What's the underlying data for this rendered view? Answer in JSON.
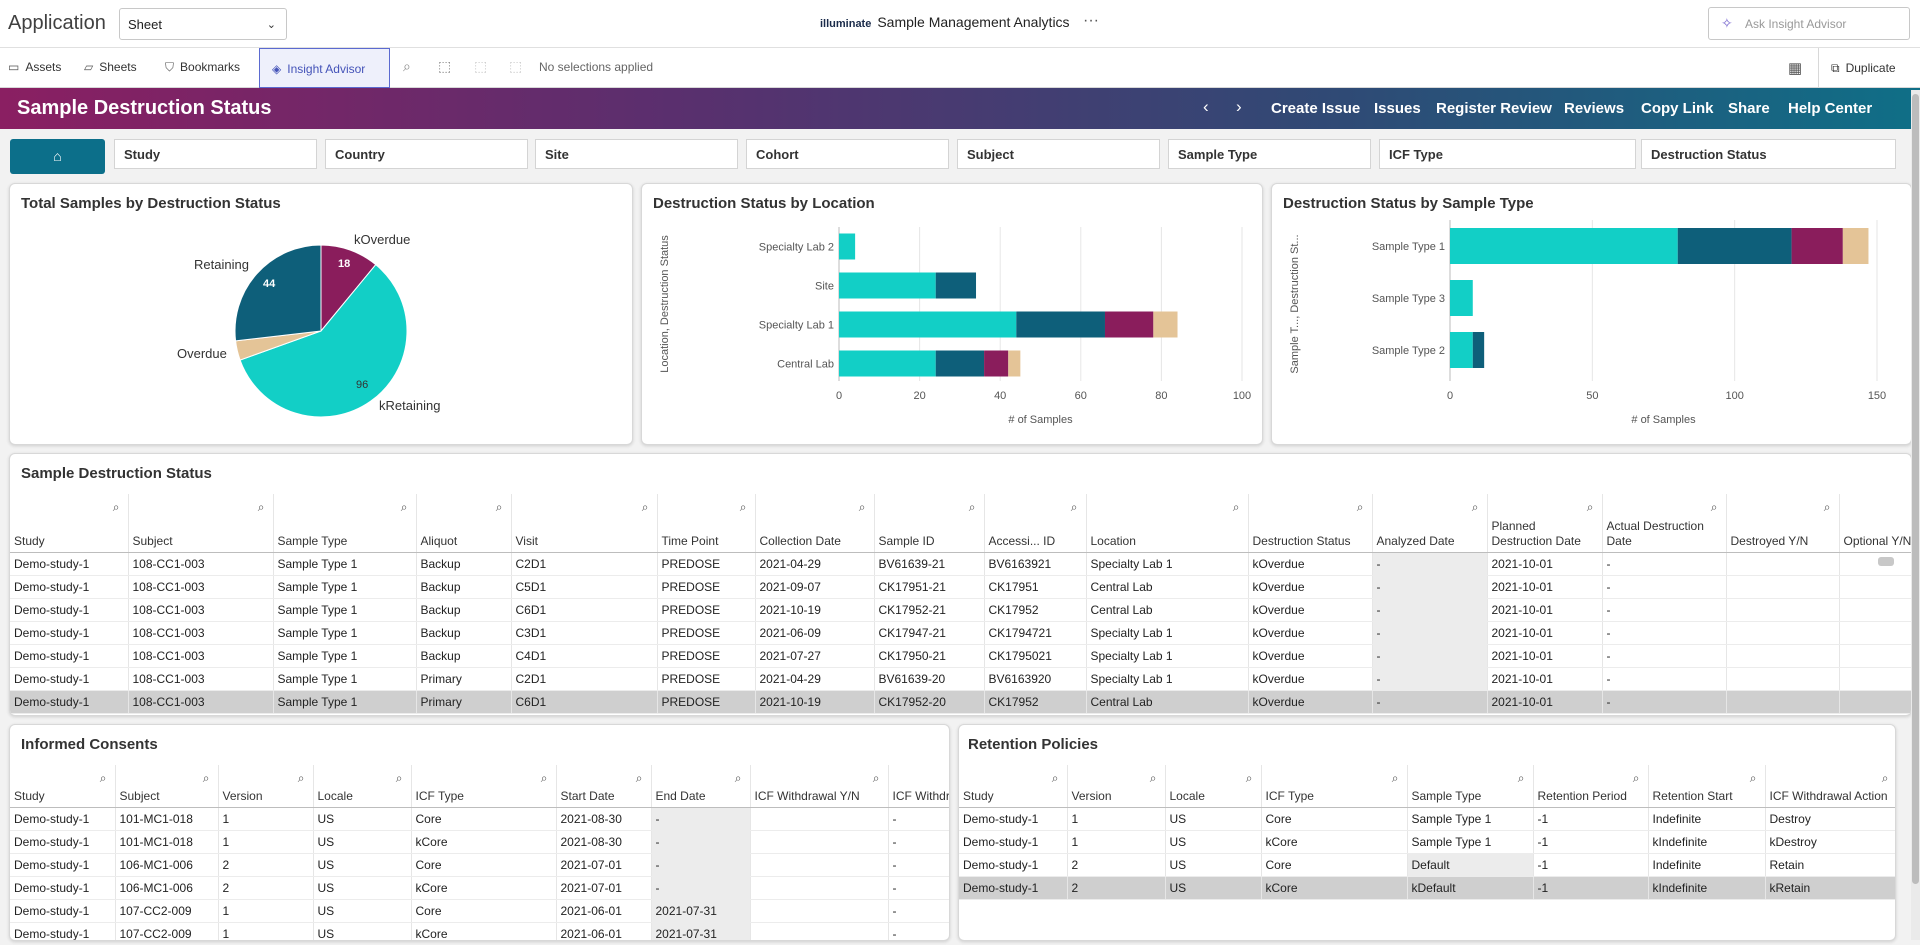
{
  "topbar": {
    "app_title": "Application",
    "sheet_value": "Sheet",
    "brand_logo": "illuminate",
    "brand_title": "Sample Management Analytics",
    "more": "···",
    "ask_placeholder": "Ask Insight Advisor"
  },
  "toolbar": {
    "assets": "Assets",
    "sheets": "Sheets",
    "bookmarks": "Bookmarks",
    "insight": "Insight Advisor",
    "selections": "No selections applied",
    "duplicate": "Duplicate"
  },
  "banner": {
    "title": "Sample Destruction Status",
    "nav": [
      "Create Issue",
      "Issues",
      "Register Review",
      "Reviews",
      "Copy Link",
      "Share",
      "Help Center"
    ]
  },
  "filters": [
    "Study",
    "Country",
    "Site",
    "Cohort",
    "Subject",
    "Sample Type",
    "ICF Type",
    "Destruction Status"
  ],
  "colors": {
    "kRetaining": "#12cfc6",
    "Retaining": "#0e5f7a",
    "kOverdue": "#8a1d5c",
    "Overdue": "#e4c497"
  },
  "pie": {
    "title": "Total Samples by Destruction Status",
    "labels": {
      "kOverdue": "kOverdue",
      "Retaining": "Retaining",
      "Overdue": "Overdue",
      "kRetaining": "kRetaining"
    },
    "value_labels": {
      "kOverdue": "18",
      "Retaining": "44",
      "kRetaining": "96"
    }
  },
  "chart_data": [
    {
      "type": "pie",
      "title": "Total Samples by Destruction Status",
      "categories": [
        "kOverdue",
        "kRetaining",
        "Overdue",
        "Retaining"
      ],
      "values": [
        18,
        96,
        6,
        44
      ],
      "colors": [
        "#8a1d5c",
        "#12cfc6",
        "#e4c497",
        "#0e5f7a"
      ]
    },
    {
      "type": "bar",
      "orientation": "horizontal",
      "stacked": true,
      "title": "Destruction Status by Location",
      "ylabel": "Location, Destruction Status",
      "xlabel": "# of Samples",
      "xlim": [
        0,
        100
      ],
      "xticks": [
        0,
        20,
        40,
        60,
        80,
        100
      ],
      "categories": [
        "Specialty Lab 2",
        "Site",
        "Specialty Lab 1",
        "Central Lab"
      ],
      "series": [
        {
          "color": "#12cfc6",
          "values": [
            4,
            24,
            44,
            24
          ]
        },
        {
          "color": "#0e5f7a",
          "values": [
            0,
            10,
            22,
            12
          ]
        },
        {
          "color": "#8a1d5c",
          "values": [
            0,
            0,
            12,
            6
          ]
        },
        {
          "color": "#e4c497",
          "values": [
            0,
            0,
            6,
            3
          ]
        }
      ]
    },
    {
      "type": "bar",
      "orientation": "horizontal",
      "stacked": true,
      "title": "Destruction Status by Sample Type",
      "ylabel": "Sample T..., Destruction St...",
      "xlabel": "# of Samples",
      "xlim": [
        0,
        150
      ],
      "xticks": [
        0,
        50,
        100,
        150
      ],
      "categories": [
        "Sample Type 1",
        "Sample Type 3",
        "Sample Type 2"
      ],
      "series": [
        {
          "color": "#12cfc6",
          "values": [
            80,
            8,
            8
          ]
        },
        {
          "color": "#0e5f7a",
          "values": [
            40,
            0,
            4
          ]
        },
        {
          "color": "#8a1d5c",
          "values": [
            18,
            0,
            0
          ]
        },
        {
          "color": "#e4c497",
          "values": [
            9,
            0,
            0
          ]
        }
      ]
    }
  ],
  "sds": {
    "title": "Sample Destruction Status",
    "headers": [
      "Study",
      "Subject",
      "Sample Type",
      "Aliquot",
      "Visit",
      "Time Point",
      "Collection Date",
      "Sample ID",
      "Accessi... ID",
      "Location",
      "Destruction Status",
      "Analyzed Date",
      "Planned Destruction Date",
      "Actual Destruction Date",
      "Destroyed Y/N",
      "Optional Y/N"
    ],
    "rows": [
      [
        "Demo-study-1",
        "108-CC1-003",
        "Sample Type 1",
        "Backup",
        "C2D1",
        "PREDOSE",
        "2021-04-29",
        "BV61639-21",
        "BV6163921",
        "Specialty Lab 1",
        "kOverdue",
        "-",
        "2021-10-01",
        "-",
        "",
        ""
      ],
      [
        "Demo-study-1",
        "108-CC1-003",
        "Sample Type 1",
        "Backup",
        "C5D1",
        "PREDOSE",
        "2021-09-07",
        "CK17951-21",
        "CK17951",
        "Central Lab",
        "kOverdue",
        "-",
        "2021-10-01",
        "-",
        "",
        ""
      ],
      [
        "Demo-study-1",
        "108-CC1-003",
        "Sample Type 1",
        "Backup",
        "C6D1",
        "PREDOSE",
        "2021-10-19",
        "CK17952-21",
        "CK17952",
        "Central Lab",
        "kOverdue",
        "-",
        "2021-10-01",
        "-",
        "",
        ""
      ],
      [
        "Demo-study-1",
        "108-CC1-003",
        "Sample Type 1",
        "Backup",
        "C3D1",
        "PREDOSE",
        "2021-06-09",
        "CK17947-21",
        "CK1794721",
        "Specialty Lab 1",
        "kOverdue",
        "-",
        "2021-10-01",
        "-",
        "",
        ""
      ],
      [
        "Demo-study-1",
        "108-CC1-003",
        "Sample Type 1",
        "Backup",
        "C4D1",
        "PREDOSE",
        "2021-07-27",
        "CK17950-21",
        "CK1795021",
        "Specialty Lab 1",
        "kOverdue",
        "-",
        "2021-10-01",
        "-",
        "",
        ""
      ],
      [
        "Demo-study-1",
        "108-CC1-003",
        "Sample Type 1",
        "Primary",
        "C2D1",
        "PREDOSE",
        "2021-04-29",
        "BV61639-20",
        "BV6163920",
        "Specialty Lab 1",
        "kOverdue",
        "-",
        "2021-10-01",
        "-",
        "",
        ""
      ],
      [
        "Demo-study-1",
        "108-CC1-003",
        "Sample Type 1",
        "Primary",
        "C6D1",
        "PREDOSE",
        "2021-10-19",
        "CK17952-20",
        "CK17952",
        "Central Lab",
        "kOverdue",
        "-",
        "2021-10-01",
        "-",
        "",
        ""
      ]
    ]
  },
  "consents": {
    "title": "Informed Consents",
    "headers": [
      "Study",
      "Subject",
      "Version",
      "Locale",
      "ICF Type",
      "Start Date",
      "End Date",
      "ICF Withdrawal Y/N",
      "ICF Withdr... Date"
    ],
    "rows": [
      [
        "Demo-study-1",
        "101-MC1-018",
        "1",
        "US",
        "Core",
        "2021-08-30",
        "-",
        "",
        "-"
      ],
      [
        "Demo-study-1",
        "101-MC1-018",
        "1",
        "US",
        "kCore",
        "2021-08-30",
        "-",
        "",
        "-"
      ],
      [
        "Demo-study-1",
        "106-MC1-006",
        "2",
        "US",
        "Core",
        "2021-07-01",
        "-",
        "",
        "-"
      ],
      [
        "Demo-study-1",
        "106-MC1-006",
        "2",
        "US",
        "kCore",
        "2021-07-01",
        "-",
        "",
        "-"
      ],
      [
        "Demo-study-1",
        "107-CC2-009",
        "1",
        "US",
        "Core",
        "2021-06-01",
        "2021-07-31",
        "",
        "-"
      ],
      [
        "Demo-study-1",
        "107-CC2-009",
        "1",
        "US",
        "kCore",
        "2021-06-01",
        "2021-07-31",
        "",
        "-"
      ]
    ]
  },
  "retention": {
    "title": "Retention Policies",
    "headers": [
      "Study",
      "Version",
      "Locale",
      "ICF Type",
      "Sample Type",
      "Retention Period",
      "Retention Start",
      "ICF Withdrawal Action"
    ],
    "rows": [
      [
        "Demo-study-1",
        "1",
        "US",
        "Core",
        "Sample Type 1",
        "-1",
        "Indefinite",
        "Destroy"
      ],
      [
        "Demo-study-1",
        "1",
        "US",
        "kCore",
        "Sample Type 1",
        "-1",
        "kIndefinite",
        "kDestroy"
      ],
      [
        "Demo-study-1",
        "2",
        "US",
        "Core",
        "Default",
        "-1",
        "Indefinite",
        "Retain"
      ],
      [
        "Demo-study-1",
        "2",
        "US",
        "kCore",
        "kDefault",
        "-1",
        "kIndefinite",
        "kRetain"
      ]
    ]
  }
}
